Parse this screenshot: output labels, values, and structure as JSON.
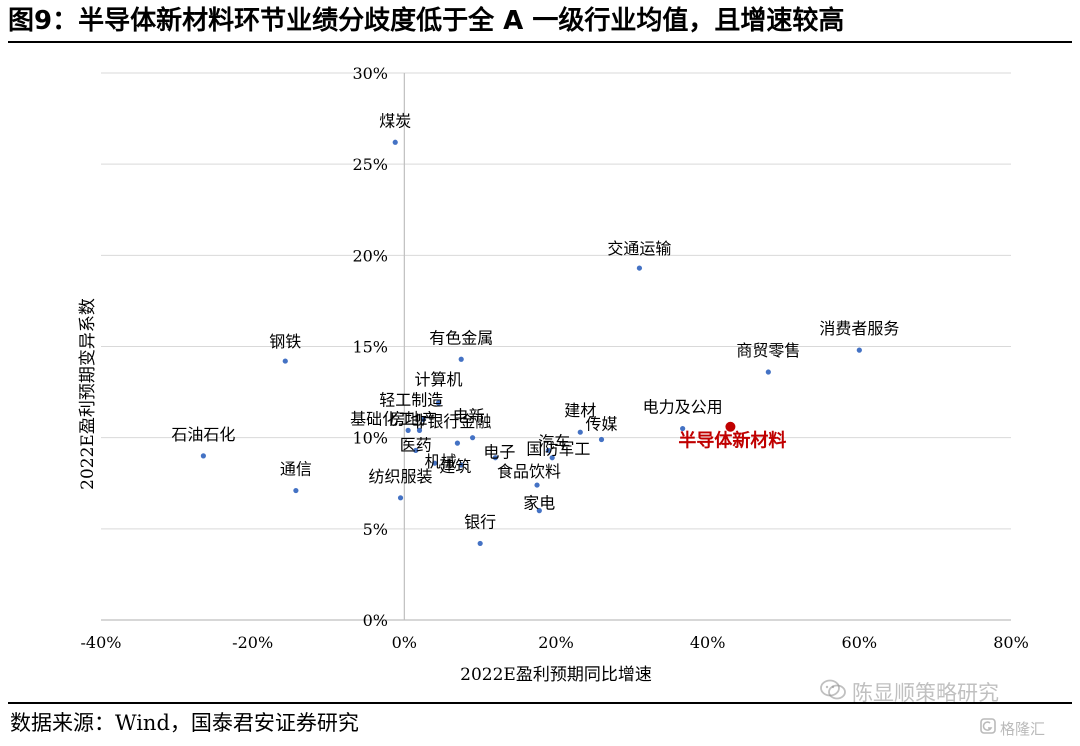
{
  "title": "图9：半导体新材料环节业绩分歧度低于全 A 一级行业均值，且增速较高",
  "source": "数据来源：Wind，国泰君安证券研究",
  "watermark": {
    "text": "陈显顺策略研究",
    "icon": "wechat-icon",
    "brand_text": "格隆汇",
    "brand_icon": "brand-logo-icon"
  },
  "colors": {
    "point": "#4472C4",
    "highlight": "#C00000",
    "grid": "#D9D9D9",
    "axis": "#BFBFBF"
  },
  "chart_data": {
    "type": "scatter",
    "title": "",
    "xlabel": "2022E盈利预期同比增速",
    "ylabel": "2022E盈利预期变异系数",
    "xlim": [
      -0.4,
      0.8
    ],
    "ylim": [
      0,
      0.3
    ],
    "xticks": [
      "-40%",
      "-20%",
      "0%",
      "20%",
      "40%",
      "60%",
      "80%"
    ],
    "yticks": [
      "0%",
      "5%",
      "10%",
      "15%",
      "20%",
      "25%",
      "30%"
    ],
    "grid": "horizontal",
    "legend": "none",
    "points": [
      {
        "name": "煤炭",
        "x": -0.012,
        "y": 0.262
      },
      {
        "name": "交通运输",
        "x": 0.31,
        "y": 0.193
      },
      {
        "name": "消费者服务",
        "x": 0.6,
        "y": 0.148
      },
      {
        "name": "商贸零售",
        "x": 0.48,
        "y": 0.136
      },
      {
        "name": "钢铁",
        "x": -0.157,
        "y": 0.142
      },
      {
        "name": "有色金属",
        "x": 0.075,
        "y": 0.143
      },
      {
        "name": "计算机",
        "x": 0.045,
        "y": 0.119
      },
      {
        "name": "轻工制造",
        "x": 0.025,
        "y": 0.11
      },
      {
        "name": "房地产",
        "x": 0.02,
        "y": 0.104
      },
      {
        "name": "基础化工",
        "x": 0.005,
        "y": 0.104
      },
      {
        "name": "电新",
        "x": 0.09,
        "y": 0.1
      },
      {
        "name": "非银行金融",
        "x": 0.07,
        "y": 0.097
      },
      {
        "name": "医药",
        "x": 0.015,
        "y": 0.093
      },
      {
        "name": "机械",
        "x": 0.04,
        "y": 0.086
      },
      {
        "name": "建筑",
        "x": 0.075,
        "y": 0.085
      },
      {
        "name": "电子",
        "x": 0.12,
        "y": 0.089
      },
      {
        "name": "国防军工",
        "x": 0.19,
        "y": 0.093
      },
      {
        "name": "汽车",
        "x": 0.195,
        "y": 0.089
      },
      {
        "name": "建材",
        "x": 0.232,
        "y": 0.103
      },
      {
        "name": "传媒",
        "x": 0.26,
        "y": 0.099
      },
      {
        "name": "食品饮料",
        "x": 0.175,
        "y": 0.074
      },
      {
        "name": "纺织服装",
        "x": -0.005,
        "y": 0.067
      },
      {
        "name": "家电",
        "x": 0.178,
        "y": 0.06
      },
      {
        "name": "银行",
        "x": 0.1,
        "y": 0.042
      },
      {
        "name": "通信",
        "x": -0.143,
        "y": 0.071
      },
      {
        "name": "石油石化",
        "x": -0.265,
        "y": 0.09
      },
      {
        "name": "电力及公用",
        "x": 0.367,
        "y": 0.105
      },
      {
        "name": "半导体新材料",
        "x": 0.43,
        "y": 0.106,
        "highlight": true
      }
    ]
  }
}
